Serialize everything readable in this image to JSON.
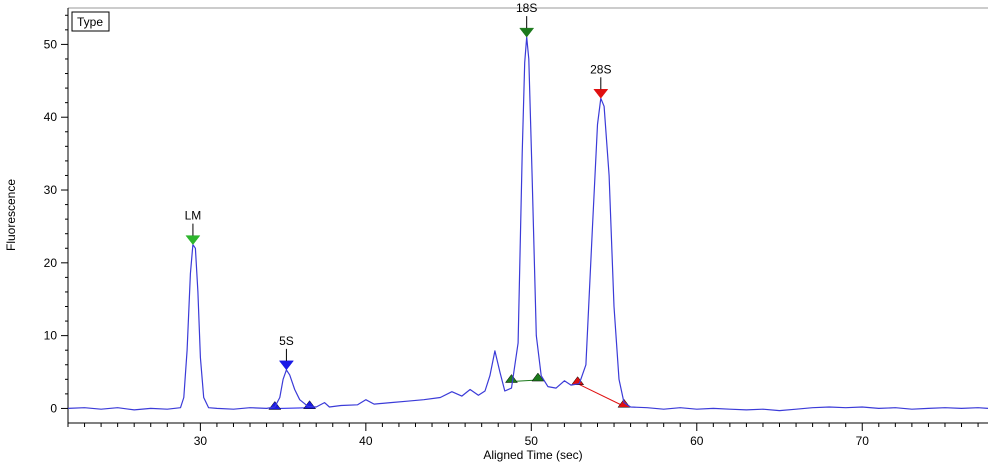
{
  "chart_data": {
    "type": "line",
    "xlabel": "Aligned Time (sec)",
    "ylabel": "Fluorescence",
    "xlim": [
      22,
      77.6
    ],
    "ylim": [
      -2,
      55
    ],
    "xticks": [
      30,
      40,
      50,
      60,
      70
    ],
    "yticks": [
      0,
      10,
      20,
      30,
      40,
      50
    ],
    "x_minor_step": 1,
    "y_minor_step": 2,
    "legend": {
      "label": "Type",
      "placement": "top-left"
    },
    "line_color": "#3b3bd8",
    "series": [
      {
        "points": [
          [
            22.0,
            0.0
          ],
          [
            23.0,
            0.1
          ],
          [
            24.0,
            -0.1
          ],
          [
            25.0,
            0.1
          ],
          [
            26.0,
            -0.2
          ],
          [
            27.0,
            0.0
          ],
          [
            28.0,
            -0.1
          ],
          [
            28.8,
            0.1
          ],
          [
            29.0,
            1.5
          ],
          [
            29.2,
            8.0
          ],
          [
            29.4,
            18.5
          ],
          [
            29.55,
            22.5
          ],
          [
            29.7,
            22.0
          ],
          [
            29.85,
            16.0
          ],
          [
            30.0,
            7.0
          ],
          [
            30.2,
            1.5
          ],
          [
            30.5,
            0.1
          ],
          [
            31.0,
            0.0
          ],
          [
            32.0,
            -0.1
          ],
          [
            33.0,
            0.1
          ],
          [
            34.0,
            0.0
          ],
          [
            34.5,
            0.2
          ],
          [
            34.8,
            1.5
          ],
          [
            35.0,
            4.0
          ],
          [
            35.2,
            5.3
          ],
          [
            35.4,
            4.6
          ],
          [
            35.7,
            2.6
          ],
          [
            36.0,
            1.2
          ],
          [
            36.5,
            0.3
          ],
          [
            37.0,
            0.2
          ],
          [
            37.5,
            0.8
          ],
          [
            37.8,
            0.2
          ],
          [
            38.5,
            0.4
          ],
          [
            39.5,
            0.5
          ],
          [
            40.0,
            1.2
          ],
          [
            40.5,
            0.6
          ],
          [
            41.5,
            0.8
          ],
          [
            42.5,
            1.0
          ],
          [
            43.5,
            1.2
          ],
          [
            44.5,
            1.5
          ],
          [
            45.2,
            2.3
          ],
          [
            45.8,
            1.7
          ],
          [
            46.3,
            2.6
          ],
          [
            46.8,
            1.8
          ],
          [
            47.2,
            2.4
          ],
          [
            47.5,
            4.5
          ],
          [
            47.8,
            7.9
          ],
          [
            48.1,
            5.0
          ],
          [
            48.4,
            2.4
          ],
          [
            48.8,
            2.8
          ],
          [
            49.2,
            9.0
          ],
          [
            49.45,
            35.0
          ],
          [
            49.6,
            47.5
          ],
          [
            49.72,
            51.0
          ],
          [
            49.85,
            48.0
          ],
          [
            50.05,
            32.0
          ],
          [
            50.3,
            10.0
          ],
          [
            50.6,
            4.5
          ],
          [
            51.0,
            3.0
          ],
          [
            51.5,
            2.8
          ],
          [
            52.0,
            3.8
          ],
          [
            52.4,
            3.2
          ],
          [
            52.9,
            3.4
          ],
          [
            53.3,
            6.0
          ],
          [
            53.7,
            25.0
          ],
          [
            54.0,
            39.0
          ],
          [
            54.2,
            42.6
          ],
          [
            54.4,
            41.5
          ],
          [
            54.7,
            32.0
          ],
          [
            55.0,
            14.0
          ],
          [
            55.3,
            4.0
          ],
          [
            55.6,
            0.8
          ],
          [
            56.0,
            0.2
          ],
          [
            57.0,
            0.1
          ],
          [
            58.0,
            -0.1
          ],
          [
            59.0,
            0.1
          ],
          [
            60.0,
            -0.1
          ],
          [
            61.0,
            0.0
          ],
          [
            62.0,
            -0.1
          ],
          [
            63.0,
            -0.2
          ],
          [
            64.0,
            -0.1
          ],
          [
            65.0,
            -0.3
          ],
          [
            66.0,
            -0.1
          ],
          [
            67.0,
            0.1
          ],
          [
            68.0,
            0.2
          ],
          [
            69.0,
            0.1
          ],
          [
            70.0,
            0.2
          ],
          [
            71.0,
            0.0
          ],
          [
            72.0,
            0.1
          ],
          [
            73.0,
            -0.1
          ],
          [
            74.0,
            0.0
          ],
          [
            75.0,
            0.1
          ],
          [
            76.0,
            0.0
          ],
          [
            77.0,
            0.1
          ],
          [
            77.6,
            0.0
          ]
        ]
      }
    ],
    "peaks": [
      {
        "label": "LM",
        "x": 29.55,
        "y": 22.5,
        "color": "#2db52d"
      },
      {
        "label": "5S",
        "x": 35.2,
        "y": 5.3,
        "color": "#1a1ae6"
      },
      {
        "label": "18S",
        "x": 49.72,
        "y": 51.0,
        "color": "#1c7a1c"
      },
      {
        "label": "28S",
        "x": 54.2,
        "y": 42.6,
        "color": "#e01010"
      }
    ],
    "baselines": [
      {
        "x1": 34.5,
        "y1": 0.0,
        "x2": 36.6,
        "y2": 0.1,
        "color": "#1a1ae6"
      },
      {
        "x1": 48.8,
        "y1": 3.7,
        "x2": 50.4,
        "y2": 3.9,
        "color": "#1c7a1c"
      },
      {
        "x1": 52.8,
        "y1": 3.4,
        "x2": 55.6,
        "y2": 0.3,
        "color": "#e01010"
      }
    ]
  }
}
